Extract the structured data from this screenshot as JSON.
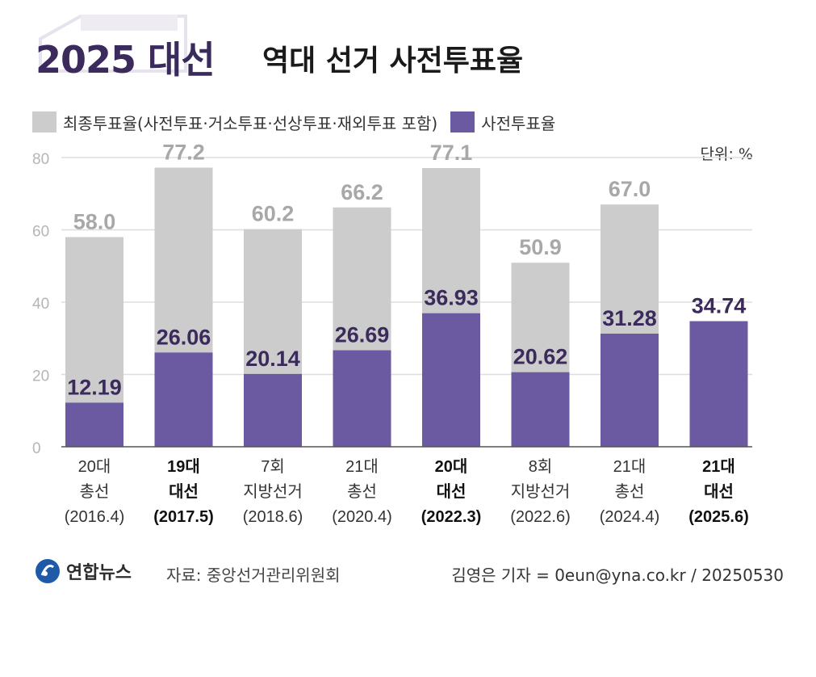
{
  "header": {
    "title_main": "2025 대선",
    "title_sub": "역대 선거 사전투표율"
  },
  "legend": {
    "final_label": "최종투표율(사전투표·거소투표·선상투표·재외투표 포함)",
    "early_label": "사전투표율"
  },
  "unit_label": "단위: %",
  "colors": {
    "final": "#cccccc",
    "early": "#6b5aa1",
    "early_text": "#3b2a5c",
    "final_text": "#a8a8a8",
    "title": "#3b2a5c"
  },
  "chart_data": {
    "type": "bar",
    "ylim": [
      0,
      80
    ],
    "yticks": [
      "0",
      "20",
      "40",
      "60",
      "80"
    ],
    "grid": true,
    "categories": [
      {
        "line1": "20대",
        "line2": "총선",
        "line3": "(2016.4)",
        "bold": false
      },
      {
        "line1": "19대",
        "line2": "대선",
        "line3": "(2017.5)",
        "bold": true
      },
      {
        "line1": "7회",
        "line2": "지방선거",
        "line3": "(2018.6)",
        "bold": false
      },
      {
        "line1": "21대",
        "line2": "총선",
        "line3": "(2020.4)",
        "bold": false
      },
      {
        "line1": "20대",
        "line2": "대선",
        "line3": "(2022.3)",
        "bold": true
      },
      {
        "line1": "8회",
        "line2": "지방선거",
        "line3": "(2022.6)",
        "bold": false
      },
      {
        "line1": "21대",
        "line2": "총선",
        "line3": "(2024.4)",
        "bold": false
      },
      {
        "line1": "21대",
        "line2": "대선",
        "line3": "(2025.6)",
        "bold": true
      }
    ],
    "series": [
      {
        "name": "최종투표율(사전투표·거소투표·선상투표·재외투표 포함)",
        "values": [
          58.0,
          77.2,
          60.2,
          66.2,
          77.1,
          50.9,
          67.0,
          null
        ],
        "labels": [
          "58.0",
          "77.2",
          "60.2",
          "66.2",
          "77.1",
          "50.9",
          "67.0",
          ""
        ]
      },
      {
        "name": "사전투표율",
        "values": [
          12.19,
          26.06,
          20.14,
          26.69,
          36.93,
          20.62,
          31.28,
          34.74
        ],
        "labels": [
          "12.19",
          "26.06",
          "20.14",
          "26.69",
          "36.93",
          "20.62",
          "31.28",
          "34.74"
        ]
      }
    ]
  },
  "footer": {
    "logo_text": "연합뉴스",
    "source": "자료: 중앙선거관리위원회",
    "credit": "김영은 기자 = 0eun@yna.co.kr / 20250530"
  }
}
